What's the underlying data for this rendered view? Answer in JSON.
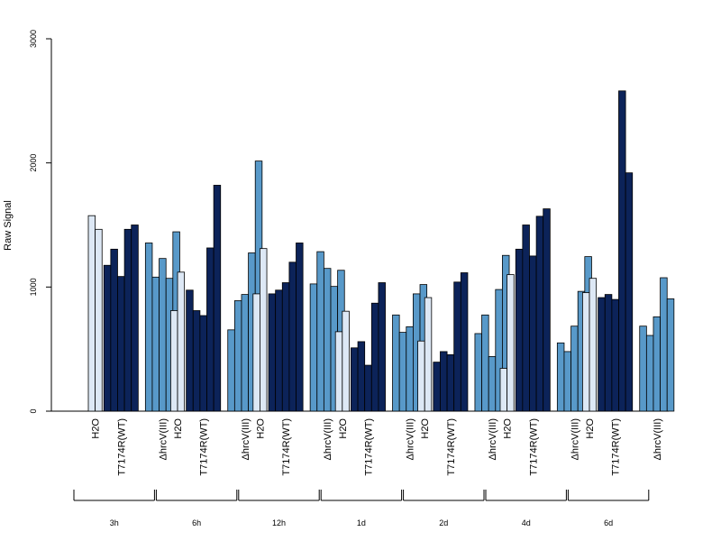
{
  "chart_data": {
    "type": "bar",
    "ylabel": "Raw Signal",
    "ylim": [
      0,
      3000
    ],
    "yticks": [
      "0",
      "1000",
      "2000",
      "3000"
    ],
    "group_labels": [
      "H2O",
      "T7174R(WT)",
      "ΔhrcV(III)"
    ],
    "colors": {
      "H2O": "#dde8f5",
      "T7174R(WT)": "#0c2359",
      "ΔhrcV(III)": "#5899c9"
    },
    "timepoints": [
      {
        "label": "3h",
        "H2O": [
          1575,
          1465
        ],
        "T7174R(WT)": [
          1175,
          1305,
          1085,
          1465,
          1500
        ],
        "ΔhrcV(III)": [
          1355,
          1080,
          1230,
          1070,
          1445
        ]
      },
      {
        "label": "6h",
        "H2O": [
          810,
          1120
        ],
        "T7174R(WT)": [
          975,
          810,
          770,
          1315,
          1820
        ],
        "ΔhrcV(III)": [
          655,
          890,
          940,
          1275,
          2015
        ]
      },
      {
        "label": "12h",
        "H2O": [
          945,
          1310
        ],
        "T7174R(WT)": [
          945,
          975,
          1035,
          1200,
          1355
        ],
        "ΔhrcV(III)": [
          1025,
          1285,
          1150,
          1005,
          1135
        ]
      },
      {
        "label": "1d",
        "H2O": [
          640,
          805
        ],
        "T7174R(WT)": [
          510,
          560,
          370,
          870,
          1035
        ],
        "ΔhrcV(III)": [
          775,
          635,
          680,
          945,
          1020
        ]
      },
      {
        "label": "2d",
        "H2O": [
          565,
          915
        ],
        "T7174R(WT)": [
          395,
          480,
          455,
          1040,
          1115
        ],
        "ΔhrcV(III)": [
          625,
          775,
          440,
          980,
          1255
        ]
      },
      {
        "label": "4d",
        "H2O": [
          345,
          1100
        ],
        "T7174R(WT)": [
          1305,
          1500,
          1250,
          1570,
          1630
        ],
        "ΔhrcV(III)": [
          550,
          480,
          685,
          965,
          1245
        ]
      },
      {
        "label": "6d",
        "H2O": [
          955,
          1070
        ],
        "T7174R(WT)": [
          915,
          940,
          900,
          2580,
          1920
        ],
        "ΔhrcV(III)": [
          685,
          610,
          760,
          1075,
          905
        ]
      }
    ]
  }
}
